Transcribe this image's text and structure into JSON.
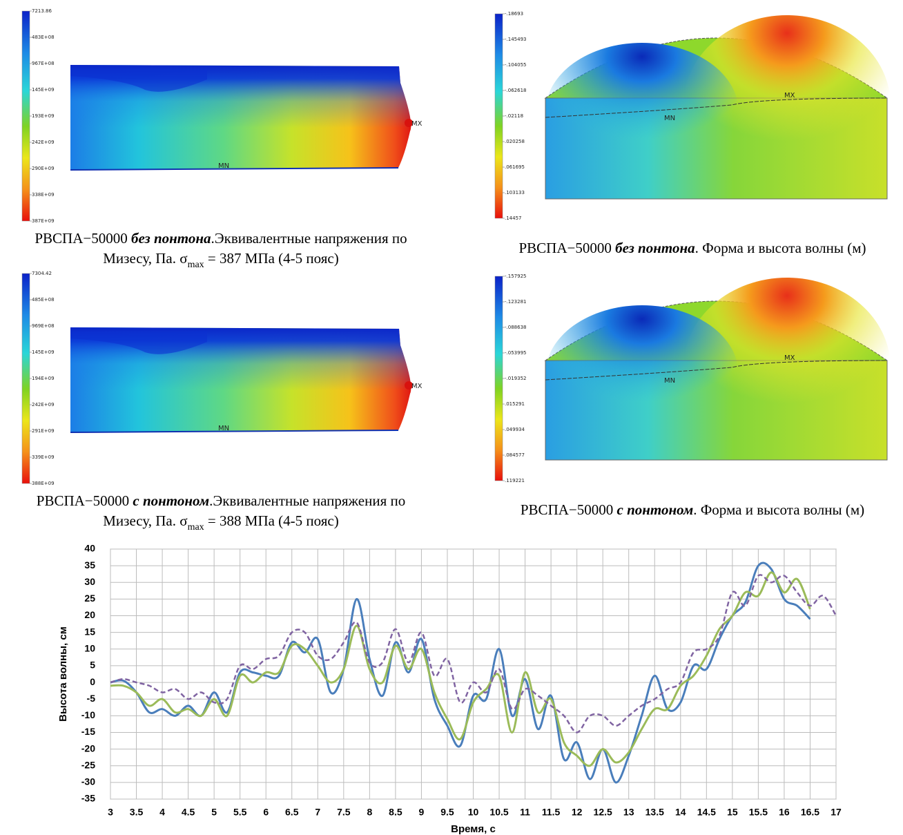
{
  "panels": [
    {
      "colorbar": [
        "7213.86",
        "483E+08",
        "967E+08",
        "145E+09",
        "193E+09",
        "242E+09",
        "290E+09",
        "338E+09",
        "387E+09"
      ],
      "max_label": "MX",
      "min_label": "MN",
      "caption": {
        "line1": {
          "before": "РВСПА−50000 ",
          "emphasis": "без понтона",
          "after": ".Эквивалентные напряжения по"
        },
        "line2": {
          "before": "Мизесу, Па. σ",
          "subscript": "max",
          "after": " = 387 МПа (4-5 пояс)"
        }
      }
    },
    {
      "colorbar": [
        "-.18693",
        "-.145493",
        "-.104055",
        "-.062618",
        "-.02118",
        ".020258",
        ".061695",
        ".103133",
        ".14457"
      ],
      "max_label": "MX",
      "min_label": "MN",
      "caption": {
        "line1": {
          "before": "РВСПА−50000 ",
          "emphasis": "без понтона",
          "after": ". Форма и высота волны (м)"
        }
      }
    },
    {
      "colorbar": [
        "7304.42",
        "485E+08",
        "969E+08",
        "145E+09",
        "194E+09",
        "242E+09",
        "291E+09",
        "339E+09",
        "388E+09"
      ],
      "max_label": "MX",
      "min_label": "MN",
      "caption": {
        "line1": {
          "before": "РВСПА−50000 ",
          "emphasis": "с понтоном",
          "after": ".Эквивалентные напряжения по"
        },
        "line2": {
          "before": "Мизесу, Па. σ",
          "subscript": "max",
          "after": " = 388 МПа (4-5 пояс)"
        }
      }
    },
    {
      "colorbar": [
        "-.157925",
        "-.123281",
        "-.088638",
        "-.053995",
        "-.019352",
        ".015291",
        ".049934",
        ".084577",
        ".119221"
      ],
      "max_label": "MX",
      "min_label": "MN",
      "caption": {
        "line1": {
          "before": "РВСПА−50000 ",
          "emphasis": "с понтоном",
          "after": ". Форма и высота волны (м)"
        }
      }
    }
  ],
  "chart_data": {
    "type": "line",
    "x_label": "Время, с",
    "y_label": "Высота волны, см",
    "xlim": [
      3,
      17
    ],
    "ylim": [
      -35,
      40
    ],
    "xticks": [
      3,
      3.5,
      4,
      4.5,
      5,
      5.5,
      6,
      6.5,
      7,
      7.5,
      8,
      8.5,
      9,
      9.5,
      10,
      10.5,
      11,
      11.5,
      12,
      12.5,
      13,
      13.5,
      14,
      14.5,
      15,
      15.5,
      16,
      16.5,
      17
    ],
    "yticks": [
      -35,
      -30,
      -25,
      -20,
      -15,
      -10,
      -5,
      0,
      5,
      10,
      15,
      20,
      25,
      30,
      35,
      40
    ],
    "grid": true,
    "x": [
      3,
      3.25,
      3.5,
      3.75,
      4,
      4.25,
      4.5,
      4.75,
      5,
      5.25,
      5.5,
      5.75,
      6,
      6.25,
      6.5,
      6.75,
      7,
      7.25,
      7.5,
      7.75,
      8,
      8.25,
      8.5,
      8.75,
      9,
      9.25,
      9.5,
      9.75,
      10,
      10.25,
      10.5,
      10.75,
      11,
      11.25,
      11.5,
      11.75,
      12,
      12.25,
      12.5,
      12.75,
      13,
      13.25,
      13.5,
      13.75,
      14,
      14.25,
      14.5,
      14.75,
      15,
      15.25,
      15.5,
      15.75,
      16,
      16.25,
      16.5,
      16.75,
      17
    ],
    "series": [
      {
        "color": "#4a7ebb",
        "dash": false,
        "values": [
          0,
          0.5,
          -3,
          -9,
          -8,
          -10,
          -7,
          -10,
          -3,
          -9,
          3,
          3,
          2,
          2,
          12,
          9,
          13,
          -3,
          4,
          25,
          7,
          -4,
          12,
          3,
          13,
          -5,
          -13,
          -19,
          -4,
          -5,
          10,
          -10,
          1,
          -14,
          -4,
          -23,
          -18,
          -29,
          -20,
          -30,
          -22,
          -10,
          2,
          -8,
          -6,
          5,
          4,
          13,
          20,
          24,
          35,
          34,
          25,
          23,
          19,
          null,
          null
        ]
      },
      {
        "color": "#9bbb59",
        "dash": false,
        "values": [
          -1,
          -1,
          -3,
          -7,
          -5,
          -9,
          -8,
          -10,
          -5,
          -10,
          2,
          0,
          3,
          3,
          11,
          10,
          5,
          0,
          4,
          17,
          4,
          0,
          11,
          4,
          10,
          -3,
          -11,
          -17,
          -6,
          -2,
          2,
          -15,
          3,
          -9,
          -5,
          -18,
          -22,
          -25,
          -20,
          -24,
          -21,
          -14,
          -8,
          -8,
          -1,
          2,
          8,
          16,
          20,
          27,
          26,
          33,
          27,
          31,
          22,
          null,
          null
        ]
      },
      {
        "color": "#8064a2",
        "dash": true,
        "values": [
          0,
          1,
          0,
          -1,
          -3,
          -2,
          -5,
          -3,
          -6,
          -5,
          5,
          4,
          7,
          8,
          15,
          15,
          8,
          7,
          12,
          18,
          6,
          6,
          16,
          6,
          15,
          2,
          7,
          -6,
          0,
          -3,
          4,
          -8,
          -2,
          -4,
          -7,
          -10,
          -15,
          -10,
          -10,
          -13,
          -10,
          -7,
          -5,
          -2,
          0,
          9,
          10,
          14,
          27,
          23,
          32,
          30,
          32,
          27,
          23,
          26,
          20
        ]
      }
    ]
  }
}
